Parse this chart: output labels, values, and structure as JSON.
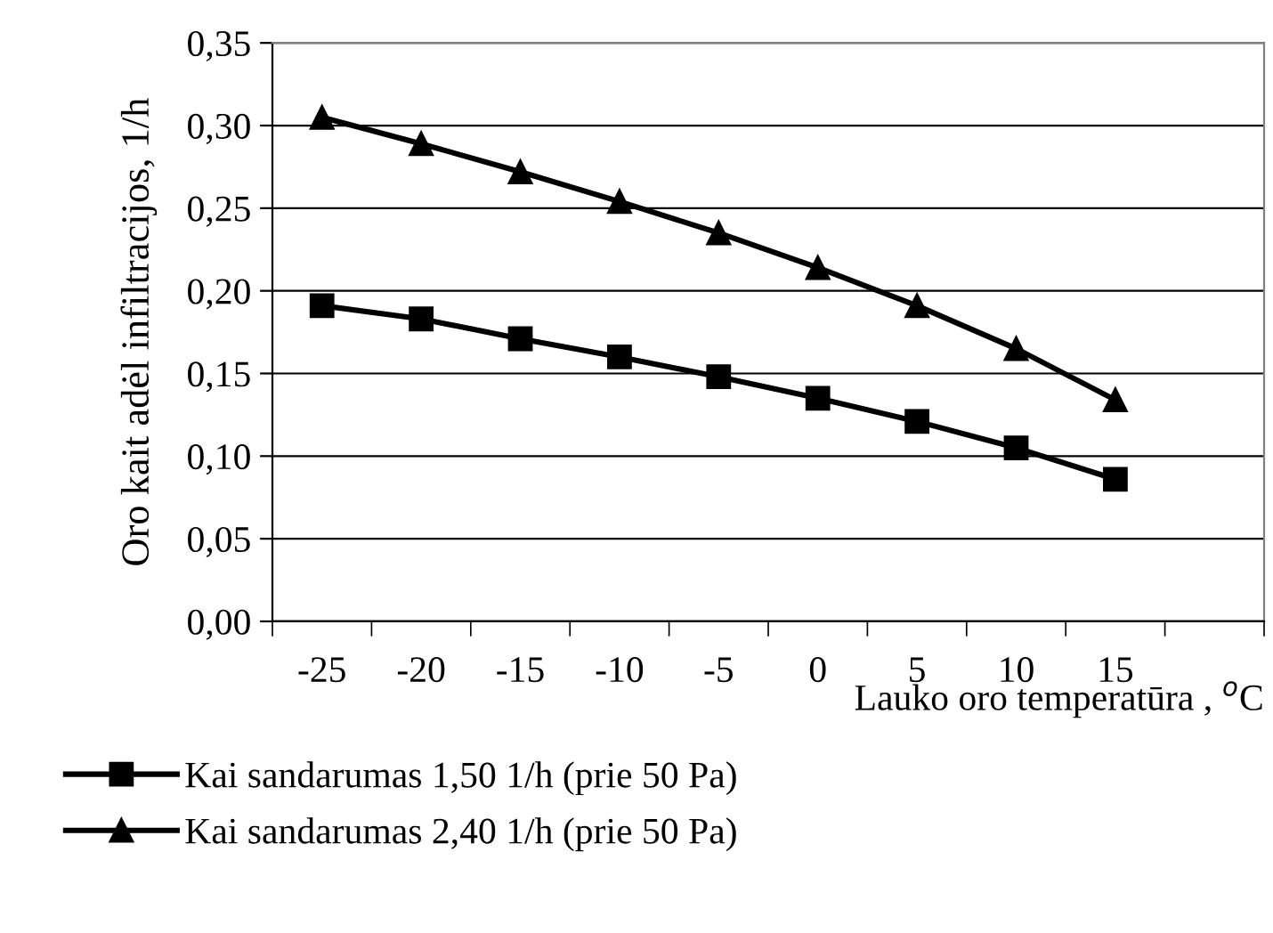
{
  "chart_data": {
    "type": "line",
    "xlabel": "Lauko oro temperatūra , $^{o}$C",
    "ylabel": "Oro kait adėl infiltracijos, 1/h",
    "categories": [
      "-25",
      "-20",
      "-15",
      "-10",
      "-5",
      "0",
      "5",
      "10",
      "15",
      null
    ],
    "series": [
      {
        "name": "Kai sandarumas 1,50 1/h (prie 50 Pa)",
        "color": "#000000",
        "marker": "square",
        "values": [
          0.191,
          0.183,
          0.171,
          0.16,
          0.148,
          0.135,
          0.121,
          0.105,
          0.086,
          null
        ]
      },
      {
        "name": "Kai sandarumas 2,40 1/h (prie 50 Pa)",
        "color": "#000000",
        "marker": "triangle",
        "values": [
          0.305,
          0.289,
          0.272,
          0.254,
          0.235,
          0.214,
          0.191,
          0.165,
          0.134,
          null
        ]
      }
    ],
    "ylim": [
      0,
      0.35
    ],
    "yticks": [
      {
        "value": 0,
        "label": "0,00"
      },
      {
        "value": 0.05,
        "label": "0,05"
      },
      {
        "value": 0.1,
        "label": "0,10"
      },
      {
        "value": 0.15,
        "label": "0,15"
      },
      {
        "value": 0.2,
        "label": "0,20"
      },
      {
        "value": 0.25,
        "label": "0,25"
      },
      {
        "value": 0.3,
        "label": "0,30"
      },
      {
        "value": 0.35,
        "label": "0,35"
      }
    ],
    "grid": "y",
    "legend": "bottom",
    "line_style": "solid"
  }
}
